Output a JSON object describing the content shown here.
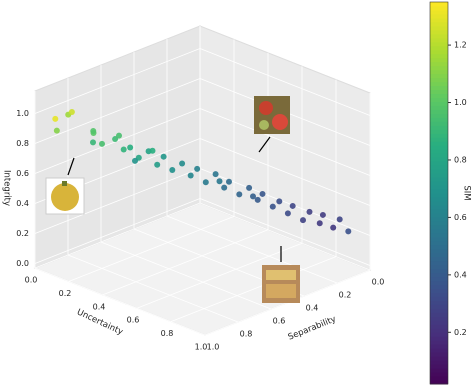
{
  "chart_data": {
    "type": "scatter3d",
    "xlabel": "Uncertainty",
    "ylabel": "Separability",
    "zlabel": "Integrity",
    "colorbar_label": "SIM",
    "xlim": [
      0,
      1
    ],
    "ylim": [
      0,
      1
    ],
    "zlim": [
      -0.03,
      1.15
    ],
    "xticks": [
      {
        "value": 0,
        "label": "0.0"
      },
      {
        "value": 0.2,
        "label": "0.2"
      },
      {
        "value": 0.4,
        "label": "0.4"
      },
      {
        "value": 0.6,
        "label": "0.6"
      },
      {
        "value": 0.8,
        "label": "0.8"
      },
      {
        "value": 1,
        "label": "1.0"
      }
    ],
    "yticks": [
      {
        "value": 0,
        "label": "0.0"
      },
      {
        "value": 0.2,
        "label": "0.2"
      },
      {
        "value": 0.4,
        "label": "0.4"
      },
      {
        "value": 0.6,
        "label": "0.6"
      },
      {
        "value": 0.8,
        "label": "0.8"
      },
      {
        "value": 1,
        "label": "1.0"
      }
    ],
    "zticks": [
      {
        "value": 0,
        "label": "0.0"
      },
      {
        "value": 0.2,
        "label": "0.2"
      },
      {
        "value": 0.4,
        "label": "0.4"
      },
      {
        "value": 0.6,
        "label": "0.6"
      },
      {
        "value": 0.8,
        "label": "0.8"
      },
      {
        "value": 1,
        "label": "1.0"
      }
    ],
    "colormap": "viridis",
    "clim": [
      0.02,
      1.35
    ],
    "cticks": [
      0.2,
      0.4,
      0.6,
      0.8,
      {
        "value": 1,
        "label": "1.0"
      },
      1.2
    ],
    "grid": true,
    "series": [
      {
        "x": [
          0.05,
          0.12,
          0.08,
          0.15,
          0.1,
          0.2,
          0.18,
          0.25,
          0.22,
          0.3,
          0.28,
          0.35,
          0.32,
          0.4,
          0.38,
          0.45,
          0.42,
          0.5,
          0.48,
          0.55,
          0.52,
          0.6,
          0.58,
          0.65,
          0.62,
          0.7,
          0.68,
          0.75,
          0.72,
          0.8,
          0.78,
          0.85,
          0.82,
          0.9,
          0.88,
          0.95,
          0.2,
          0.4,
          0.6,
          0.7,
          0.3,
          0.1,
          0.05
        ],
        "y": [
          0.85,
          0.9,
          0.95,
          0.8,
          0.75,
          0.8,
          0.7,
          0.72,
          0.65,
          0.68,
          0.6,
          0.62,
          0.55,
          0.58,
          0.5,
          0.52,
          0.45,
          0.48,
          0.4,
          0.42,
          0.36,
          0.38,
          0.3,
          0.32,
          0.26,
          0.28,
          0.22,
          0.24,
          0.18,
          0.2,
          0.14,
          0.15,
          0.1,
          0.12,
          0.06,
          0.08,
          0.6,
          0.7,
          0.5,
          0.4,
          0.8,
          0.98,
          0.7
        ],
        "z": [
          0.95,
          1.02,
          0.9,
          0.85,
          0.82,
          0.8,
          0.78,
          0.75,
          0.72,
          0.7,
          0.7,
          0.65,
          0.66,
          0.62,
          0.62,
          0.58,
          0.58,
          0.54,
          0.55,
          0.5,
          0.5,
          0.46,
          0.46,
          0.42,
          0.42,
          0.38,
          0.38,
          0.34,
          0.35,
          0.3,
          0.32,
          0.28,
          0.3,
          0.26,
          0.28,
          0.24,
          0.6,
          0.8,
          0.6,
          0.5,
          0.9,
          1.0,
          0.7
        ],
        "color_values": [
          1.15,
          1.25,
          1.1,
          1.0,
          0.98,
          0.95,
          0.92,
          0.88,
          0.85,
          0.8,
          0.78,
          0.75,
          0.72,
          0.68,
          0.66,
          0.62,
          0.6,
          0.56,
          0.54,
          0.5,
          0.48,
          0.45,
          0.43,
          0.4,
          0.38,
          0.36,
          0.34,
          0.32,
          0.3,
          0.28,
          0.27,
          0.25,
          0.26,
          0.24,
          0.3,
          0.35,
          0.7,
          0.85,
          0.55,
          0.42,
          0.95,
          1.3,
          0.9
        ]
      }
    ]
  }
}
